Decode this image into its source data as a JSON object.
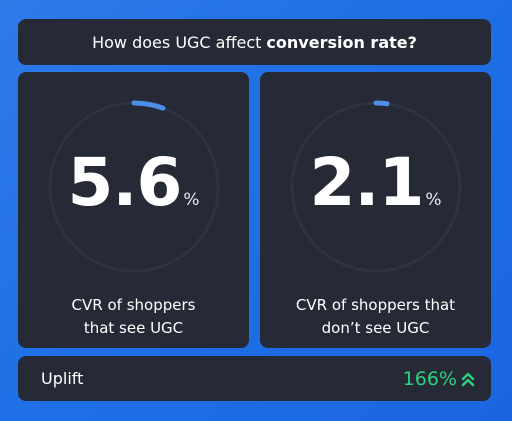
{
  "title": {
    "prefix": "How does UGC affect",
    "emphasis": "conversion rate?"
  },
  "cards": [
    {
      "value": "5.6",
      "unit": "%",
      "caption_line1": "CVR of shoppers",
      "caption_line2": "that see UGC",
      "progress_percent": 5.6
    },
    {
      "value": "2.1",
      "unit": "%",
      "caption_line1": "CVR of shoppers that",
      "caption_line2": "don’t see UGC",
      "progress_percent": 2.1
    }
  ],
  "uplift": {
    "label": "Uplift",
    "value": "166%",
    "icon": "double-chevron-up-icon"
  },
  "colors": {
    "background": "#1f6fe6",
    "panel": "#252a36",
    "ring_track": "#2e3341",
    "ring_progress": "#4d8fe8",
    "uplift_green": "#2fcf7f"
  }
}
